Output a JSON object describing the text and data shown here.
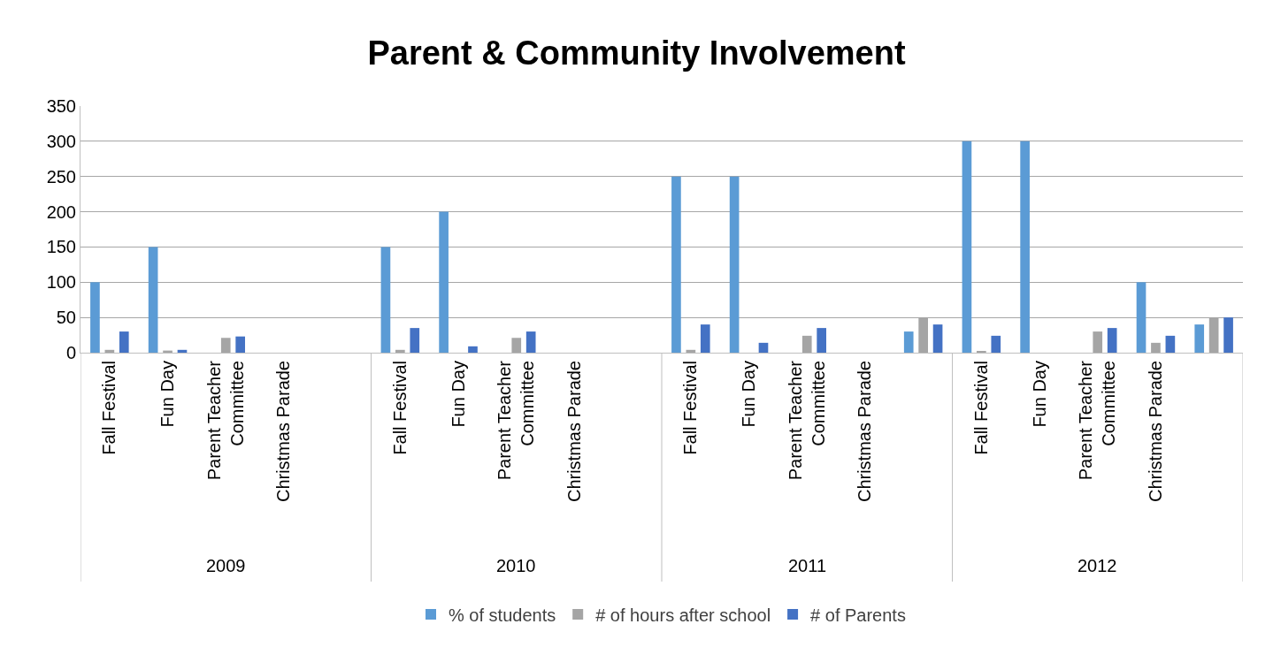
{
  "chart_data": {
    "type": "bar",
    "title": "Parent & Community Involvement",
    "categories": [
      "Fall Festival",
      "Fun Day",
      "Parent Teacher Committee",
      "Christmas Parade",
      null,
      "Fall Festival",
      "Fun Day",
      "Parent Teacher Committee",
      "Christmas Parade",
      null,
      "Fall Festival",
      "Fun Day",
      "Parent Teacher Committee",
      "Christmas Parade",
      null,
      "Fall Festival",
      "Fun Day",
      "Parent Teacher Committee",
      "Christmas Parade",
      null
    ],
    "series": [
      {
        "name": "% of students",
        "color": "#5b9bd5",
        "values": [
          100,
          150,
          null,
          null,
          null,
          150,
          200,
          null,
          null,
          null,
          250,
          250,
          null,
          null,
          30,
          300,
          300,
          null,
          100,
          40
        ]
      },
      {
        "name": "# of hours after school",
        "color": "#a5a5a5",
        "values": [
          4,
          3,
          21,
          null,
          null,
          4,
          null,
          21,
          null,
          null,
          4,
          null,
          24,
          null,
          50,
          2,
          null,
          30,
          14,
          50
        ]
      },
      {
        "name": "# of Parents",
        "color": "#4472c4",
        "values": [
          30,
          4,
          23,
          null,
          null,
          35,
          9,
          30,
          null,
          null,
          40,
          14,
          35,
          null,
          40,
          24,
          null,
          35,
          24,
          50
        ]
      }
    ],
    "annotations": [
      "2009",
      "2010",
      "2011",
      "2012"
    ],
    "ylim": [
      0,
      350
    ],
    "yticks": [
      0,
      50,
      100,
      150,
      200,
      250,
      300,
      350
    ],
    "grid": "y",
    "legend": "bottom"
  }
}
